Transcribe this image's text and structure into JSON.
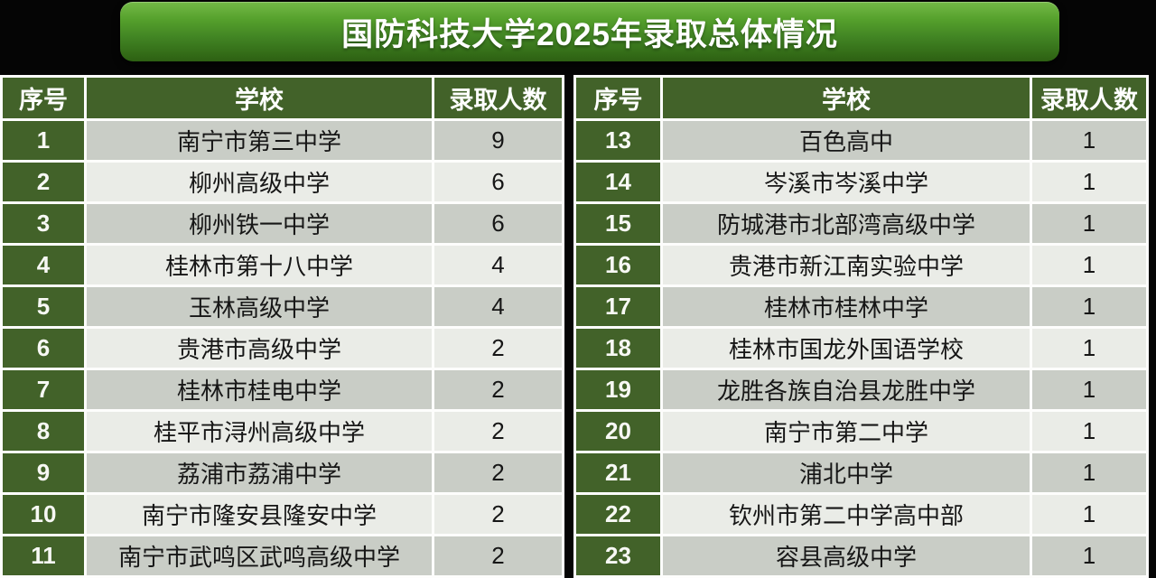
{
  "page": {
    "title": "国防科技大学2025年录取总体情况"
  },
  "colors": {
    "background": "#050505",
    "banner_green_top": "#74ba47",
    "banner_green_bottom": "#2d6012",
    "header_green": "#426229",
    "row_odd_gray": "#c9cdc6",
    "row_even_gray": "#eaece7",
    "gridline_white": "#fdfdfc"
  },
  "columns": {
    "index": "序号",
    "school": "学校",
    "count": "录取人数"
  },
  "tables": {
    "left": {
      "rows": [
        {
          "no": "1",
          "school": "南宁市第三中学",
          "count": "9"
        },
        {
          "no": "2",
          "school": "柳州高级中学",
          "count": "6"
        },
        {
          "no": "3",
          "school": "柳州铁一中学",
          "count": "6"
        },
        {
          "no": "4",
          "school": "桂林市第十八中学",
          "count": "4"
        },
        {
          "no": "5",
          "school": "玉林高级中学",
          "count": "4"
        },
        {
          "no": "6",
          "school": "贵港市高级中学",
          "count": "2"
        },
        {
          "no": "7",
          "school": "桂林市桂电中学",
          "count": "2"
        },
        {
          "no": "8",
          "school": "桂平市浔州高级中学",
          "count": "2"
        },
        {
          "no": "9",
          "school": "荔浦市荔浦中学",
          "count": "2"
        },
        {
          "no": "10",
          "school": "南宁市隆安县隆安中学",
          "count": "2"
        },
        {
          "no": "11",
          "school": "南宁市武鸣区武鸣高级中学",
          "count": "2"
        }
      ]
    },
    "right": {
      "rows": [
        {
          "no": "13",
          "school": "百色高中",
          "count": "1"
        },
        {
          "no": "14",
          "school": "岑溪市岑溪中学",
          "count": "1"
        },
        {
          "no": "15",
          "school": "防城港市北部湾高级中学",
          "count": "1"
        },
        {
          "no": "16",
          "school": "贵港市新江南实验中学",
          "count": "1"
        },
        {
          "no": "17",
          "school": "桂林市桂林中学",
          "count": "1"
        },
        {
          "no": "18",
          "school": "桂林市国龙外国语学校",
          "count": "1"
        },
        {
          "no": "19",
          "school": "龙胜各族自治县龙胜中学",
          "count": "1"
        },
        {
          "no": "20",
          "school": "南宁市第二中学",
          "count": "1"
        },
        {
          "no": "21",
          "school": "浦北中学",
          "count": "1"
        },
        {
          "no": "22",
          "school": "钦州市第二中学高中部",
          "count": "1"
        },
        {
          "no": "23",
          "school": "容县高级中学",
          "count": "1"
        }
      ]
    }
  }
}
